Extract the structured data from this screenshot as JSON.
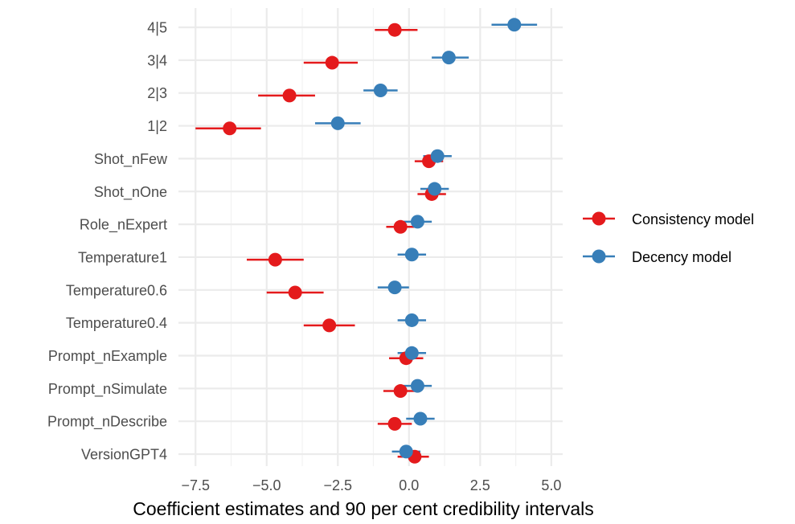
{
  "chart_data": {
    "type": "scatter",
    "xlabel": "Coefficient estimates and 90 per cent credibility intervals",
    "ylabel": "",
    "xlim": [
      -8.1,
      5.4
    ],
    "x_ticks": [
      -7.5,
      -5.0,
      -2.5,
      0.0,
      2.5,
      5.0
    ],
    "x_tick_labels": [
      "−7.5",
      "−5.0",
      "−2.5",
      "0.0",
      "2.5",
      "5.0"
    ],
    "categories": [
      "4|5",
      "3|4",
      "2|3",
      "1|2",
      "Shot_nFew",
      "Shot_nOne",
      "Role_nExpert",
      "Temperature1",
      "Temperature0.6",
      "Temperature0.4",
      "Prompt_nExample",
      "Prompt_nSimulate",
      "Prompt_nDescribe",
      "VersionGPT4"
    ],
    "grid": true,
    "legend_position": "right",
    "series": [
      {
        "name": "Consistency model",
        "color": "#e41a1c",
        "estimates": [
          -0.5,
          -2.7,
          -4.2,
          -6.3,
          0.7,
          0.8,
          -0.3,
          -4.7,
          -4.0,
          -2.8,
          -0.1,
          -0.3,
          -0.5,
          0.2
        ],
        "lower": [
          -1.2,
          -3.7,
          -5.3,
          -7.5,
          0.2,
          0.3,
          -0.8,
          -5.7,
          -5.0,
          -3.7,
          -0.7,
          -0.9,
          -1.1,
          -0.4
        ],
        "upper": [
          0.3,
          -1.8,
          -3.3,
          -5.2,
          1.2,
          1.3,
          0.2,
          -3.7,
          -3.0,
          -1.9,
          0.5,
          0.4,
          0.1,
          0.7
        ]
      },
      {
        "name": "Decency model",
        "color": "#377eb8",
        "estimates": [
          3.7,
          1.4,
          -1.0,
          -2.5,
          1.0,
          0.9,
          0.3,
          0.1,
          -0.5,
          0.1,
          0.1,
          0.3,
          0.4,
          -0.1
        ],
        "lower": [
          2.9,
          0.8,
          -1.6,
          -3.3,
          0.5,
          0.4,
          -0.2,
          -0.4,
          -1.1,
          -0.4,
          -0.4,
          -0.2,
          -0.1,
          -0.6
        ],
        "upper": [
          4.5,
          2.1,
          -0.4,
          -1.7,
          1.5,
          1.4,
          0.8,
          0.6,
          0.0,
          0.6,
          0.6,
          0.8,
          0.9,
          0.4
        ]
      }
    ]
  }
}
